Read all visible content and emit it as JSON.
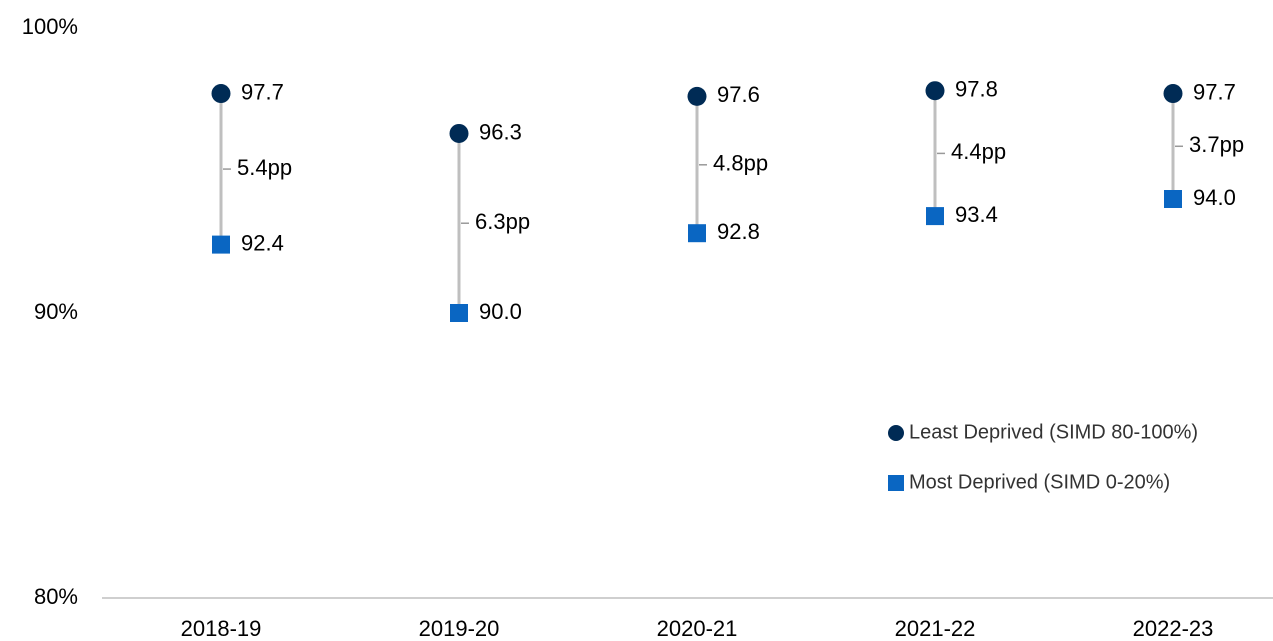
{
  "chart_data": {
    "type": "dumbbell",
    "categories": [
      "2018-19",
      "2019-20",
      "2020-21",
      "2021-22",
      "2022-23"
    ],
    "series": [
      {
        "name": "Least Deprived (SIMD 80-100%)",
        "color": "#002b55",
        "marker": "circle",
        "values": [
          97.7,
          96.3,
          97.6,
          97.8,
          97.7
        ],
        "value_labels": [
          "97.7",
          "96.3",
          "97.6",
          "97.8",
          "97.7"
        ]
      },
      {
        "name": "Most Deprived (SIMD 0-20%)",
        "color": "#0a66c2",
        "marker": "square",
        "values": [
          92.4,
          90.0,
          92.8,
          93.4,
          94.0
        ],
        "value_labels": [
          "92.4",
          "90.0",
          "92.8",
          "93.4",
          "94.0"
        ]
      }
    ],
    "gap_labels": [
      "5.4pp",
      "6.3pp",
      "4.8pp",
      "4.4pp",
      "3.7pp"
    ],
    "connector_color": "#bfbfbf",
    "ylim": [
      80,
      100
    ],
    "yticks": [
      {
        "value": 80,
        "label": "80%"
      },
      {
        "value": 90,
        "label": "90%"
      },
      {
        "value": 100,
        "label": "100%"
      }
    ],
    "grid": false
  }
}
